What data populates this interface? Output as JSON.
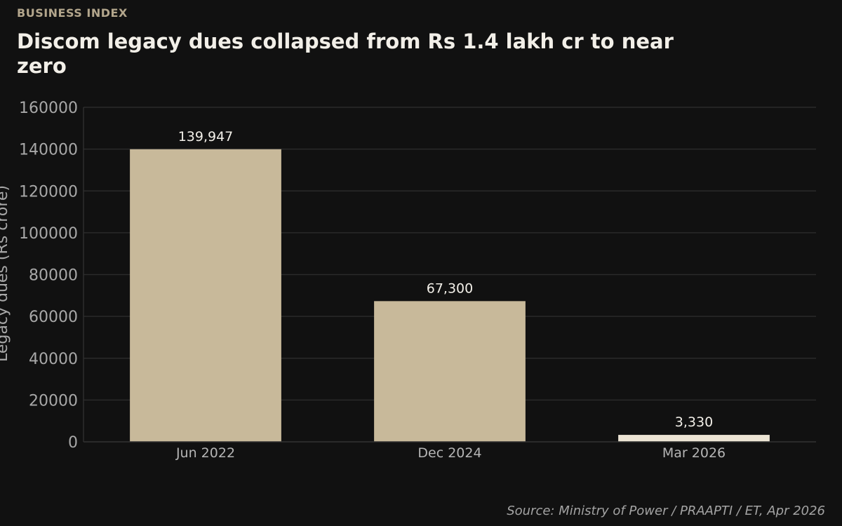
{
  "header": {
    "kicker": "BUSINESS INDEX",
    "title": "Discom legacy dues collapsed from Rs 1.4 lakh cr to near zero"
  },
  "footer": {
    "source": "Source: Ministry of Power / PRAAPTI / ET, Apr 2026"
  },
  "colors": {
    "background": "#111111",
    "bar": "#c8b99a",
    "bar_highlight": "#ece4d4",
    "grid": "#2a2a2a"
  },
  "chart_data": {
    "type": "bar",
    "title": "Discom legacy dues collapsed from Rs 1.4 lakh cr to near zero",
    "xlabel": "",
    "ylabel": "Legacy dues (Rs crore)",
    "categories": [
      "Jun 2022",
      "Dec 2024",
      "Mar 2026"
    ],
    "values": [
      139947,
      67300,
      3330
    ],
    "value_labels": [
      "139,947",
      "67,300",
      "3,330"
    ],
    "highlight_index": 2,
    "ylim": [
      0,
      160000
    ],
    "yticks": [
      0,
      20000,
      40000,
      60000,
      80000,
      100000,
      120000,
      140000,
      160000
    ],
    "ytick_labels": [
      "0",
      "20000",
      "40000",
      "60000",
      "80000",
      "100000",
      "120000",
      "140000",
      "160000"
    ],
    "grid": true,
    "legend": "none"
  }
}
